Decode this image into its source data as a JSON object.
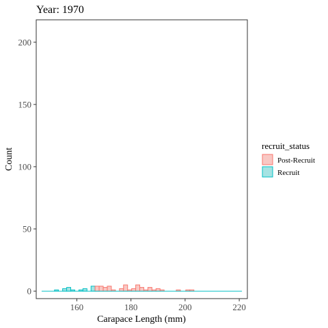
{
  "chart_data": {
    "type": "histogram",
    "title": "Year: 1970",
    "xlabel": "Carapace Length (mm)",
    "ylabel": "Count",
    "xlim": [
      145,
      223
    ],
    "ylim": [
      -6,
      218
    ],
    "x_ticks": [
      160,
      180,
      200,
      220
    ],
    "y_ticks": [
      0,
      50,
      100,
      150,
      200
    ],
    "grid": false,
    "legend": {
      "title": "recruit_status",
      "placement": "right",
      "entries": [
        "Post-Recruit",
        "Recruit"
      ]
    },
    "colors": {
      "Post-Recruit": {
        "fill": "#f8c8c4",
        "stroke": "#f8766d"
      },
      "Recruit": {
        "fill": "#a5e3e3",
        "stroke": "#00bfc4"
      }
    },
    "bin_width": 1.5,
    "baseline": {
      "series": "Recruit",
      "x_range": [
        147,
        221
      ]
    },
    "series": [
      {
        "name": "Recruit",
        "bins": [
          {
            "x": 152.5,
            "count": 1
          },
          {
            "x": 155.5,
            "count": 2
          },
          {
            "x": 157.0,
            "count": 3
          },
          {
            "x": 158.5,
            "count": 1
          },
          {
            "x": 161.5,
            "count": 1
          },
          {
            "x": 163.0,
            "count": 2
          },
          {
            "x": 166.0,
            "count": 4
          },
          {
            "x": 167.5,
            "count": 1
          }
        ]
      },
      {
        "name": "Post-Recruit",
        "bins": [
          {
            "x": 167.5,
            "count": 4
          },
          {
            "x": 169.0,
            "count": 4
          },
          {
            "x": 170.5,
            "count": 3
          },
          {
            "x": 172.0,
            "count": 4
          },
          {
            "x": 173.5,
            "count": 1
          },
          {
            "x": 176.5,
            "count": 2
          },
          {
            "x": 178.0,
            "count": 5
          },
          {
            "x": 179.5,
            "count": 1
          },
          {
            "x": 181.0,
            "count": 2
          },
          {
            "x": 182.5,
            "count": 5
          },
          {
            "x": 184.0,
            "count": 3
          },
          {
            "x": 185.5,
            "count": 1
          },
          {
            "x": 187.0,
            "count": 3
          },
          {
            "x": 188.5,
            "count": 1
          },
          {
            "x": 190.0,
            "count": 2
          },
          {
            "x": 191.5,
            "count": 1
          },
          {
            "x": 197.5,
            "count": 1
          },
          {
            "x": 201.0,
            "count": 1
          },
          {
            "x": 202.5,
            "count": 1
          }
        ]
      }
    ]
  }
}
